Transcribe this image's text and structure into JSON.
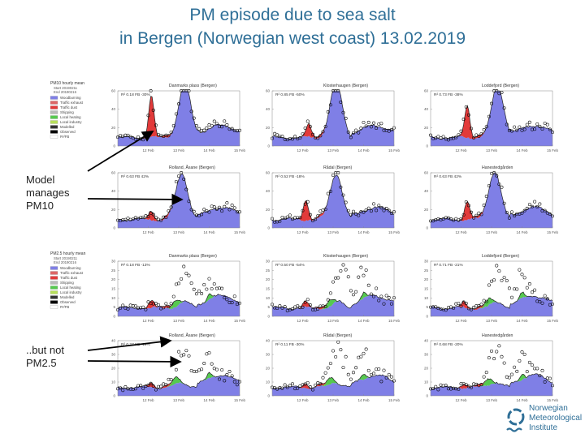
{
  "title_line1": "PM episode due to sea salt",
  "title_line2": "in Bergen (Norwegian west coast) 13.02.2019",
  "notes": {
    "model_manages": "Model\nmanages\nPM10",
    "but_not": "..but not\nPM2.5"
  },
  "logo": {
    "line1": "Norwegian",
    "line2": "Meteorological",
    "line3": "Institute",
    "color": "#2f6f97"
  },
  "colors": {
    "woodburning": "#7f7fe6",
    "traffic_exhaust": "#e23a3a",
    "traffic_nonexhaust": "#55c94f",
    "observed": "#000000",
    "modelled": "#222222",
    "arrow": "#000000"
  },
  "chart_data": [
    {
      "type": "area",
      "row": 0,
      "col": 0,
      "pm": "PM10",
      "title": "Danmarks plass (Bergen)",
      "stat": "R² 0.18 FB -30%",
      "xticks": [
        "12 Feb",
        "13 Feb",
        "14 Feb",
        "15 Feb"
      ],
      "ylim": [
        0,
        60
      ],
      "yticks": [
        0,
        20,
        40,
        60
      ],
      "peak_day": 2.2,
      "peak_value": 58,
      "red_day": 1.1,
      "red_value": 45,
      "obs_scale": 1.05,
      "legend": {
        "title": "PM10 hourly mean",
        "lines": [
          "Start 20190211",
          "End 20190216"
        ],
        "items": [
          "Woodburning",
          "Traffic exhaust",
          "Traffic dust",
          "Shipping",
          "Local heating",
          "Local industry",
          "Modelled",
          "Observed",
          "R²/FB"
        ]
      }
    },
    {
      "type": "area",
      "row": 0,
      "col": 1,
      "pm": "PM10",
      "title": "Klosterhaugen (Bergen)",
      "stat": "R² 0.85 FB -50%",
      "xticks": [
        "12 Feb",
        "13 Feb",
        "14 Feb",
        "15 Feb"
      ],
      "ylim": [
        0,
        60
      ],
      "yticks": [
        0,
        20,
        40,
        60
      ],
      "peak_day": 2.1,
      "peak_value": 60,
      "red_day": 1.2,
      "red_value": 14,
      "obs_scale": 1.0
    },
    {
      "type": "area",
      "row": 0,
      "col": 2,
      "pm": "PM10",
      "title": "Loddefjord (Bergen)",
      "stat": "R² 0.73 FB -38%",
      "xticks": [
        "12 Feb",
        "13 Feb",
        "14 Feb",
        "15 Feb"
      ],
      "ylim": [
        0,
        60
      ],
      "yticks": [
        0,
        20,
        40,
        60
      ],
      "peak_day": 2.2,
      "peak_value": 56,
      "red_day": 1.2,
      "red_value": 35,
      "obs_scale": 1.0
    },
    {
      "type": "area",
      "row": 1,
      "col": 0,
      "pm": "PM10",
      "title": "Rolland, Åsane (Bergen)",
      "stat": "R² 0.63 FB 42%",
      "xticks": [
        "12 Feb",
        "13 Feb",
        "14 Feb",
        "15 Feb"
      ],
      "ylim": [
        0,
        60
      ],
      "yticks": [
        0,
        20,
        40,
        60
      ],
      "peak_day": 2.1,
      "peak_value": 50,
      "red_day": 1.1,
      "red_value": 10,
      "obs_scale": 1.1
    },
    {
      "type": "area",
      "row": 1,
      "col": 1,
      "pm": "PM10",
      "title": "Rådal (Bergen)",
      "stat": "R² 0.52 FB -18%",
      "xticks": [
        "12 Feb",
        "13 Feb",
        "14 Feb",
        "15 Feb"
      ],
      "ylim": [
        0,
        60
      ],
      "yticks": [
        0,
        20,
        40,
        60
      ],
      "peak_day": 2.1,
      "peak_value": 50,
      "red_day": 1.1,
      "red_value": 22,
      "obs_scale": 1.1
    },
    {
      "type": "area",
      "row": 1,
      "col": 2,
      "pm": "PM10",
      "title": "Hanestedgården",
      "stat": "R² 0.63 FB 42%",
      "xticks": [
        "12 Feb",
        "13 Feb",
        "14 Feb",
        "15 Feb"
      ],
      "ylim": [
        0,
        60
      ],
      "yticks": [
        0,
        20,
        40,
        60
      ],
      "peak_day": 2.1,
      "peak_value": 52,
      "red_day": 1.2,
      "red_value": 20,
      "obs_scale": 1.1
    },
    {
      "type": "area",
      "row": 2,
      "col": 0,
      "pm": "PM2.5",
      "title": "Danmarks plass (Bergen)",
      "stat": "R² 0.18 FB -13%",
      "xticks": [
        "12 Feb",
        "13 Feb",
        "14 Feb",
        "15 Feb"
      ],
      "ylim": [
        0,
        30
      ],
      "yticks": [
        0,
        5,
        10,
        15,
        20,
        25,
        30
      ],
      "peak_day": 2.2,
      "peak_value": 10,
      "red_day": 1.1,
      "red_value": 4,
      "obs_scale": 2.3,
      "legend": {
        "title": "PM2.5 hourly mean",
        "lines": [
          "Start 20190211",
          "End 20190216"
        ],
        "items": [
          "Woodburning",
          "Traffic exhaust",
          "Traffic dust",
          "Shipping",
          "Local heating",
          "Local industry",
          "Modelled",
          "Observed",
          "R²/FB"
        ]
      }
    },
    {
      "type": "area",
      "row": 2,
      "col": 1,
      "pm": "PM2.5",
      "title": "Klosterhaugen (Bergen)",
      "stat": "R² 0.50 FB -54%",
      "xticks": [
        "12 Feb",
        "13 Feb",
        "14 Feb",
        "15 Feb"
      ],
      "ylim": [
        0,
        30
      ],
      "yticks": [
        0,
        5,
        10,
        15,
        20,
        25,
        30
      ],
      "peak_day": 2.2,
      "peak_value": 10,
      "red_day": 1.1,
      "red_value": 3,
      "obs_scale": 2.3
    },
    {
      "type": "area",
      "row": 2,
      "col": 2,
      "pm": "PM2.5",
      "title": "Loddefjord (Bergen)",
      "stat": "R² 0.71 FB -21%",
      "xticks": [
        "12 Feb",
        "13 Feb",
        "14 Feb",
        "15 Feb"
      ],
      "ylim": [
        0,
        30
      ],
      "yticks": [
        0,
        5,
        10,
        15,
        20,
        25,
        30
      ],
      "peak_day": 2.2,
      "peak_value": 10,
      "red_day": 1.1,
      "red_value": 3,
      "obs_scale": 2.4
    },
    {
      "type": "area",
      "row": 3,
      "col": 0,
      "pm": "PM2.5",
      "title": "Rolland, Åsane (Bergen)",
      "stat": "R² 0.27 FB -19%",
      "xticks": [
        "12 Feb",
        "13 Feb",
        "14 Feb",
        "15 Feb"
      ],
      "ylim": [
        0,
        40
      ],
      "yticks": [
        0,
        10,
        20,
        30,
        40
      ],
      "peak_day": 2.1,
      "peak_value": 12,
      "red_day": 1.1,
      "red_value": 3,
      "obs_scale": 2.4
    },
    {
      "type": "area",
      "row": 3,
      "col": 1,
      "pm": "PM2.5",
      "title": "Rådal (Bergen)",
      "stat": "R² 0.11 FB -30%",
      "xticks": [
        "12 Feb",
        "13 Feb",
        "14 Feb",
        "15 Feb"
      ],
      "ylim": [
        0,
        40
      ],
      "yticks": [
        0,
        10,
        20,
        30,
        40
      ],
      "peak_day": 2.1,
      "peak_value": 12,
      "red_day": 1.1,
      "red_value": 3,
      "obs_scale": 2.4
    },
    {
      "type": "area",
      "row": 3,
      "col": 2,
      "pm": "PM2.5",
      "title": "Hanestedgården",
      "stat": "R² 0.68 FB -20%",
      "xticks": [
        "12 Feb",
        "13 Feb",
        "14 Feb",
        "15 Feb"
      ],
      "ylim": [
        0,
        40
      ],
      "yticks": [
        0,
        10,
        20,
        30,
        40
      ],
      "peak_day": 2.1,
      "peak_value": 12,
      "red_day": 1.1,
      "red_value": 3,
      "obs_scale": 2.4
    }
  ]
}
